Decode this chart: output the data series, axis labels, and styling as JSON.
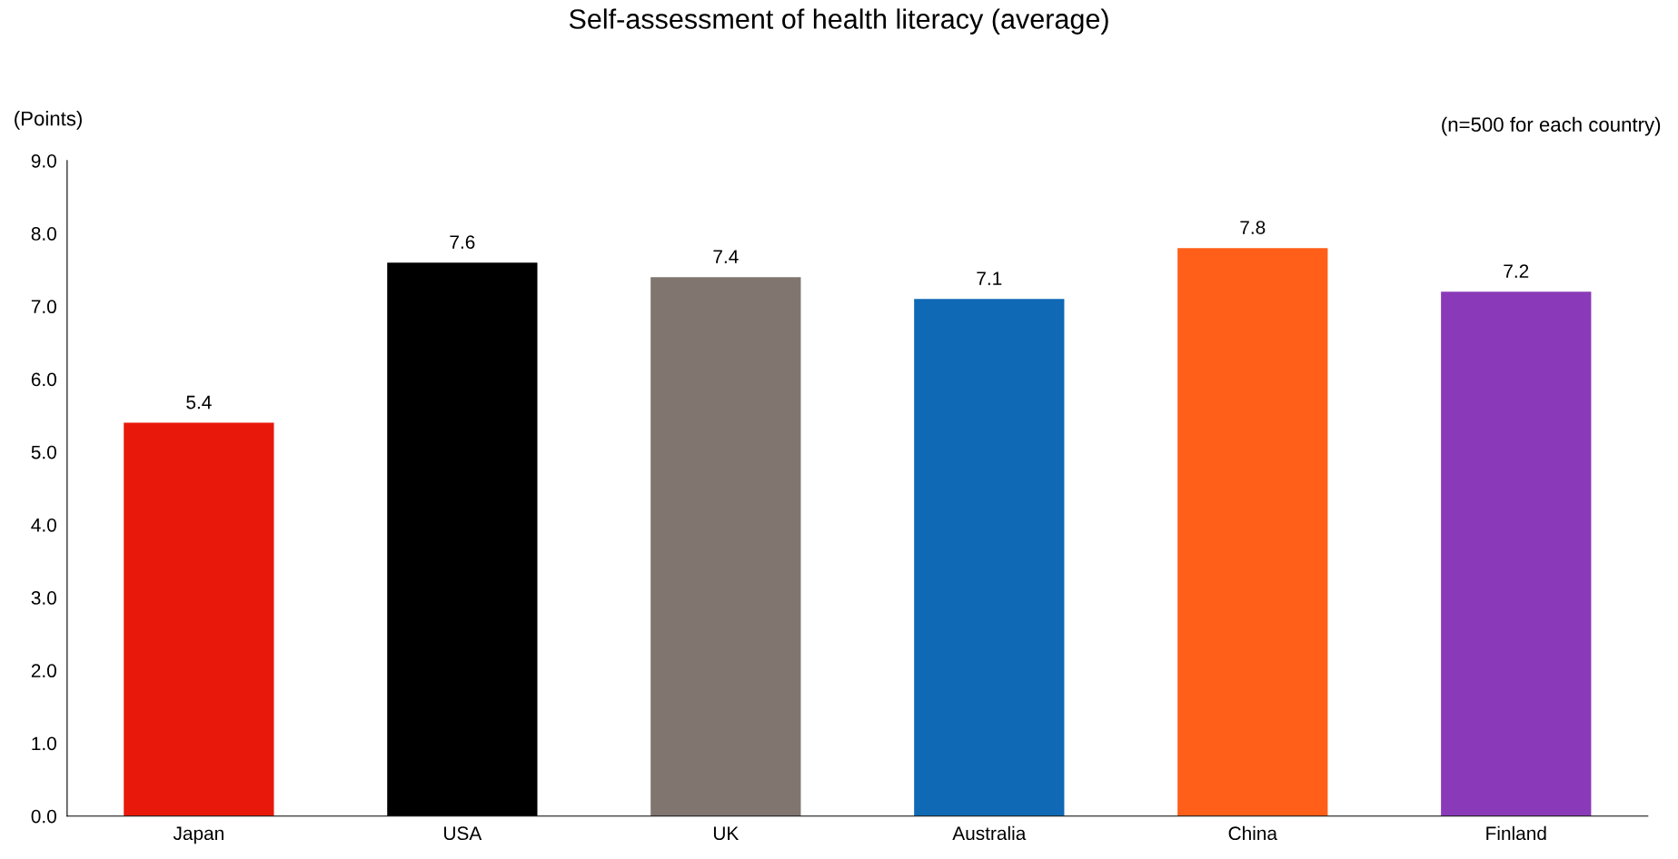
{
  "chart_data": {
    "type": "bar",
    "title": "Self-assessment of health literacy (average)",
    "ylabel": "(Points)",
    "annotations": [
      "(n=500 for each country)"
    ],
    "categories": [
      "Japan",
      "USA",
      "UK",
      "Australia",
      "China",
      "Finland"
    ],
    "values": [
      5.4,
      7.6,
      7.4,
      7.1,
      7.8,
      7.2
    ],
    "colors": [
      "#e8190a",
      "#000000",
      "#80756f",
      "#0f69b4",
      "#ff5f19",
      "#8a3ab9"
    ],
    "ylim": [
      0,
      9
    ],
    "yticks": [
      {
        "value": 0,
        "label": "0.0"
      },
      {
        "value": 1,
        "label": "1.0"
      },
      {
        "value": 2,
        "label": "2.0"
      },
      {
        "value": 3,
        "label": "3.0"
      },
      {
        "value": 4,
        "label": "4.0"
      },
      {
        "value": 5,
        "label": "5.0"
      },
      {
        "value": 6,
        "label": "6.0"
      },
      {
        "value": 7,
        "label": "7.0"
      },
      {
        "value": 8,
        "label": "8.0"
      },
      {
        "value": 9,
        "label": "9.0"
      }
    ],
    "data_labels": true,
    "grid": false,
    "legend": false
  }
}
